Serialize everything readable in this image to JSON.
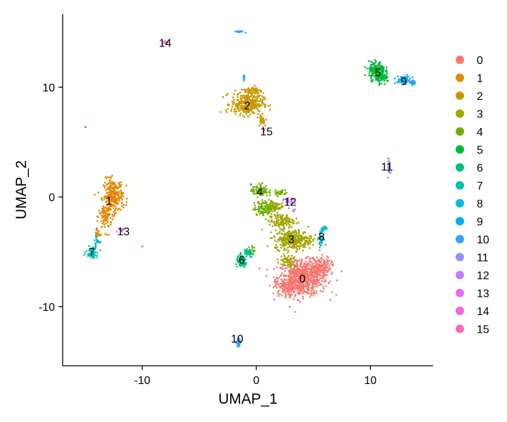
{
  "chart_data": {
    "type": "scatter",
    "xlabel": "UMAP_1",
    "ylabel": "UMAP_2",
    "xlim": [
      -17.3,
      15.6
    ],
    "ylim": [
      -15.5,
      16.6
    ],
    "xticks": [
      -10,
      0,
      10
    ],
    "yticks": [
      -10,
      0,
      10
    ],
    "xtick_labels": [
      "-10",
      "0",
      "10"
    ],
    "ytick_labels": [
      "-10",
      "0",
      "10"
    ],
    "legend_position": "right",
    "grid": false,
    "clusters": [
      {
        "id": "0",
        "color": "#F8766D",
        "label_pos": [
          4.0,
          -7.5
        ],
        "blobs": [
          [
            4.0,
            -7.5,
            2.0,
            1.4,
            680
          ],
          [
            5.4,
            -6.4,
            1.0,
            0.8,
            160
          ],
          [
            2.9,
            -8.4,
            1.2,
            0.7,
            120
          ]
        ]
      },
      {
        "id": "1",
        "color": "#E58700",
        "label_pos": [
          -13.2,
          -0.4
        ],
        "blobs": [
          [
            -12.8,
            0.0,
            0.8,
            1.4,
            260
          ],
          [
            -13.5,
            -1.9,
            0.5,
            1.2,
            90
          ],
          [
            -14.2,
            -3.4,
            0.2,
            0.6,
            20
          ]
        ]
      },
      {
        "id": "2",
        "color": "#C99800",
        "label_pos": [
          -0.9,
          8.3
        ],
        "blobs": [
          [
            -0.9,
            8.4,
            1.3,
            0.9,
            330
          ],
          [
            -0.4,
            9.6,
            0.7,
            0.4,
            60
          ],
          [
            0.4,
            6.9,
            0.4,
            0.5,
            25
          ]
        ]
      },
      {
        "id": "3",
        "color": "#A3A500",
        "label_pos": [
          3.0,
          -3.9
        ],
        "blobs": [
          [
            3.2,
            -4.0,
            1.5,
            0.8,
            320
          ],
          [
            2.1,
            -2.3,
            1.0,
            0.6,
            130
          ],
          [
            1.5,
            -0.9,
            0.7,
            0.4,
            60
          ],
          [
            2.6,
            -6.0,
            0.8,
            0.5,
            60
          ]
        ]
      },
      {
        "id": "4",
        "color": "#6BB100",
        "label_pos": [
          0.2,
          0.4
        ],
        "blobs": [
          [
            0.2,
            0.5,
            0.7,
            0.5,
            90
          ],
          [
            0.7,
            -1.1,
            0.9,
            0.6,
            110
          ],
          [
            2.0,
            0.3,
            0.5,
            0.3,
            30
          ],
          [
            -0.5,
            -4.8,
            0.2,
            0.3,
            10
          ]
        ]
      },
      {
        "id": "5",
        "color": "#00BA38",
        "label_pos": [
          10.7,
          11.3
        ],
        "blobs": [
          [
            10.6,
            11.4,
            0.65,
            0.75,
            210
          ],
          [
            11.2,
            10.8,
            0.5,
            0.4,
            50
          ]
        ]
      },
      {
        "id": "6",
        "color": "#00BF7D",
        "label_pos": [
          -1.4,
          -5.8
        ],
        "blobs": [
          [
            -1.4,
            -6.0,
            0.45,
            0.45,
            90
          ],
          [
            -0.8,
            -5.2,
            0.35,
            0.4,
            40
          ]
        ]
      },
      {
        "id": "7",
        "color": "#00C0AF",
        "label_pos": [
          -14.7,
          -5.1
        ],
        "blobs": [
          [
            -14.7,
            -5.1,
            0.45,
            0.45,
            80
          ],
          [
            -14.3,
            -4.1,
            0.25,
            0.35,
            20
          ]
        ]
      },
      {
        "id": "8",
        "color": "#00BCD8",
        "label_pos": [
          5.7,
          -3.7
        ],
        "blobs": [
          [
            5.7,
            -3.8,
            0.2,
            0.7,
            45
          ],
          [
            6.0,
            -2.9,
            0.15,
            0.3,
            15
          ]
        ]
      },
      {
        "id": "9",
        "color": "#00B0F6",
        "label_pos": [
          13.0,
          10.5
        ],
        "blobs": [
          [
            13.0,
            10.6,
            0.6,
            0.3,
            70
          ],
          [
            13.8,
            10.3,
            0.3,
            0.15,
            20
          ]
        ]
      },
      {
        "id": "10",
        "color": "#35A2FF",
        "label_pos": [
          -1.8,
          -13.0
        ],
        "blobs": [
          [
            -1.7,
            -13.5,
            0.15,
            0.45,
            30
          ],
          [
            -1.6,
            15.0,
            0.4,
            0.06,
            24
          ],
          [
            -1.2,
            10.8,
            0.08,
            0.3,
            10
          ],
          [
            13.6,
            10.4,
            0.4,
            0.12,
            15
          ]
        ]
      },
      {
        "id": "11",
        "color": "#9590FF",
        "label_pos": [
          11.5,
          2.7
        ],
        "blobs": [
          [
            11.7,
            2.7,
            0.1,
            0.7,
            40
          ]
        ]
      },
      {
        "id": "12",
        "color": "#C77CFF",
        "label_pos": [
          2.9,
          -0.5
        ],
        "blobs": [
          [
            2.9,
            -0.5,
            0.45,
            0.25,
            25
          ],
          [
            3.3,
            -1.3,
            0.1,
            0.15,
            5
          ]
        ]
      },
      {
        "id": "13",
        "color": "#E76BF3",
        "label_pos": [
          -11.9,
          -3.2
        ],
        "blobs": [
          [
            -12.1,
            -3.1,
            0.25,
            0.25,
            15
          ],
          [
            -10.2,
            -4.6,
            0.05,
            0.05,
            2
          ]
        ]
      },
      {
        "id": "14",
        "color": "#FA62DB",
        "label_pos": [
          -8.2,
          14.0
        ],
        "blobs": [
          [
            -8.2,
            14.0,
            0.3,
            0.15,
            12
          ]
        ]
      },
      {
        "id": "15",
        "color": "#FF62BC",
        "label_pos": [
          0.8,
          5.9
        ],
        "blobs": [
          [
            -15.3,
            6.3,
            0.08,
            0.08,
            3
          ],
          [
            0.6,
            6.1,
            0.15,
            0.15,
            4
          ]
        ]
      }
    ],
    "legend": [
      "0",
      "1",
      "2",
      "3",
      "4",
      "5",
      "6",
      "7",
      "8",
      "9",
      "10",
      "11",
      "12",
      "13",
      "14",
      "15"
    ]
  }
}
